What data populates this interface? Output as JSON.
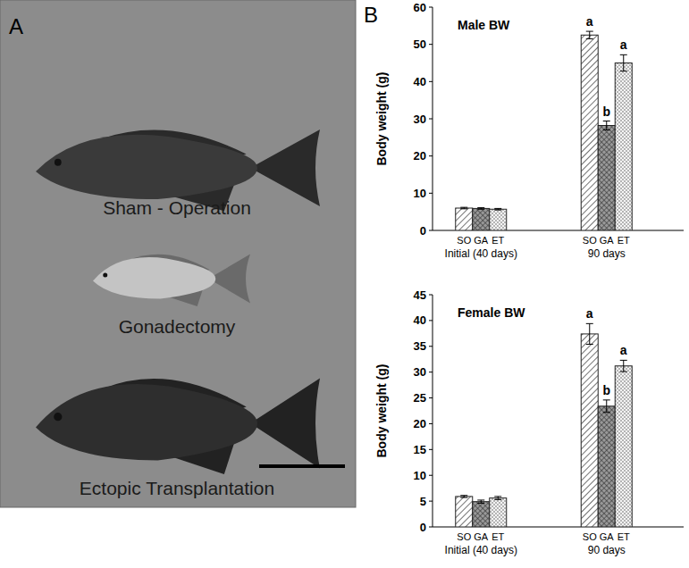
{
  "panels": {
    "a_label": "A",
    "b_label": "B",
    "photo_labels": [
      "Sham - Operation",
      "Gonadectomy",
      "Ectopic Transplantation"
    ]
  },
  "chart_data": [
    {
      "type": "bar",
      "title": "Male BW",
      "y_label": "Body weight (g)",
      "categories": [
        "SO",
        "GA",
        "ET",
        "SO",
        "GA",
        "ET"
      ],
      "group_labels": [
        "Initial (40 days)",
        "90 days"
      ],
      "values": [
        6.0,
        5.9,
        5.7,
        52.5,
        28.2,
        45.0
      ],
      "errors": [
        0.2,
        0.2,
        0.2,
        1.0,
        1.2,
        2.2
      ],
      "annotations": [
        {
          "index": 3,
          "text": "a"
        },
        {
          "index": 4,
          "text": "b"
        },
        {
          "index": 5,
          "text": "a"
        }
      ],
      "ylim": [
        0,
        60
      ],
      "yticks": [
        0,
        10,
        20,
        30,
        40,
        50,
        60
      ],
      "grid": false
    },
    {
      "type": "bar",
      "title": "Female BW",
      "y_label": "Body weight (g)",
      "categories": [
        "SO",
        "GA",
        "ET",
        "SO",
        "GA",
        "ET"
      ],
      "group_labels": [
        "Initial (40 days)",
        "90 days"
      ],
      "values": [
        5.9,
        4.9,
        5.6,
        37.4,
        23.4,
        31.2
      ],
      "errors": [
        0.2,
        0.3,
        0.3,
        2.0,
        1.2,
        1.1
      ],
      "annotations": [
        {
          "index": 3,
          "text": "a"
        },
        {
          "index": 4,
          "text": "b"
        },
        {
          "index": 5,
          "text": "a"
        }
      ],
      "ylim": [
        0,
        45
      ],
      "yticks": [
        0,
        5,
        10,
        15,
        20,
        25,
        30,
        35,
        40,
        45
      ],
      "grid": false
    }
  ]
}
